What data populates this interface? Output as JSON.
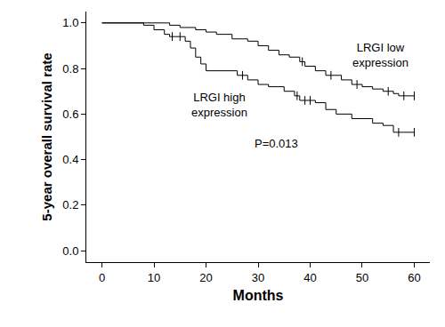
{
  "chart_data": {
    "type": "step",
    "x_label": "Months",
    "y_label": "5-year overall survival rate",
    "xlim": [
      -3,
      63
    ],
    "xticks": [
      0,
      10,
      20,
      30,
      40,
      50,
      60
    ],
    "ylim": [
      -0.05,
      1.05
    ],
    "yticks": [
      {
        "value": 0,
        "label": "0.0"
      },
      0.2,
      0.4,
      0.6,
      0.8,
      {
        "value": 1,
        "label": "1.0"
      }
    ],
    "grid": false,
    "series": [
      {
        "name": "LRGI low expression",
        "color": "#000000",
        "line_style": "solid",
        "marker": "line-ns",
        "x": [
          0,
          13,
          15,
          18,
          20,
          22,
          25,
          28,
          30,
          32,
          34,
          36,
          38,
          39,
          41,
          43,
          46,
          48,
          50,
          52,
          54,
          56,
          57,
          60
        ],
        "values": [
          1.0,
          0.99,
          0.98,
          0.97,
          0.96,
          0.95,
          0.93,
          0.92,
          0.9,
          0.88,
          0.86,
          0.85,
          0.83,
          0.81,
          0.79,
          0.77,
          0.75,
          0.73,
          0.72,
          0.71,
          0.7,
          0.69,
          0.68,
          0.68
        ],
        "censored": {
          "x": [
            38.5,
            44,
            49,
            55,
            58,
            60
          ],
          "values": [
            0.83,
            0.77,
            0.73,
            0.7,
            0.68,
            0.68
          ]
        }
      },
      {
        "name": "LRGI high expression",
        "color": "#000000",
        "line_style": "solid",
        "marker": "line-ns",
        "x": [
          0,
          8,
          10,
          12,
          13,
          16,
          17,
          18,
          19,
          20,
          26,
          28,
          30,
          32,
          35,
          37,
          38,
          41,
          43,
          45,
          48,
          52,
          54,
          56,
          60
        ],
        "values": [
          1.0,
          0.99,
          0.97,
          0.95,
          0.94,
          0.92,
          0.89,
          0.85,
          0.82,
          0.79,
          0.77,
          0.75,
          0.73,
          0.72,
          0.7,
          0.68,
          0.66,
          0.65,
          0.62,
          0.6,
          0.58,
          0.56,
          0.55,
          0.52,
          0.52
        ],
        "censored": {
          "x": [
            13.5,
            15,
            27,
            37.5,
            39,
            40,
            57,
            60
          ],
          "values": [
            0.94,
            0.94,
            0.77,
            0.68,
            0.66,
            0.66,
            0.52,
            0.52
          ]
        }
      }
    ],
    "annotations": [
      {
        "text": "LRGI low\nexpression",
        "x": 53.5,
        "y": 0.86
      },
      {
        "text": "LRGI high\nexpression",
        "x": 22.5,
        "y": 0.64
      },
      {
        "text": "P=0.013",
        "x": 33.5,
        "y": 0.47
      }
    ]
  }
}
